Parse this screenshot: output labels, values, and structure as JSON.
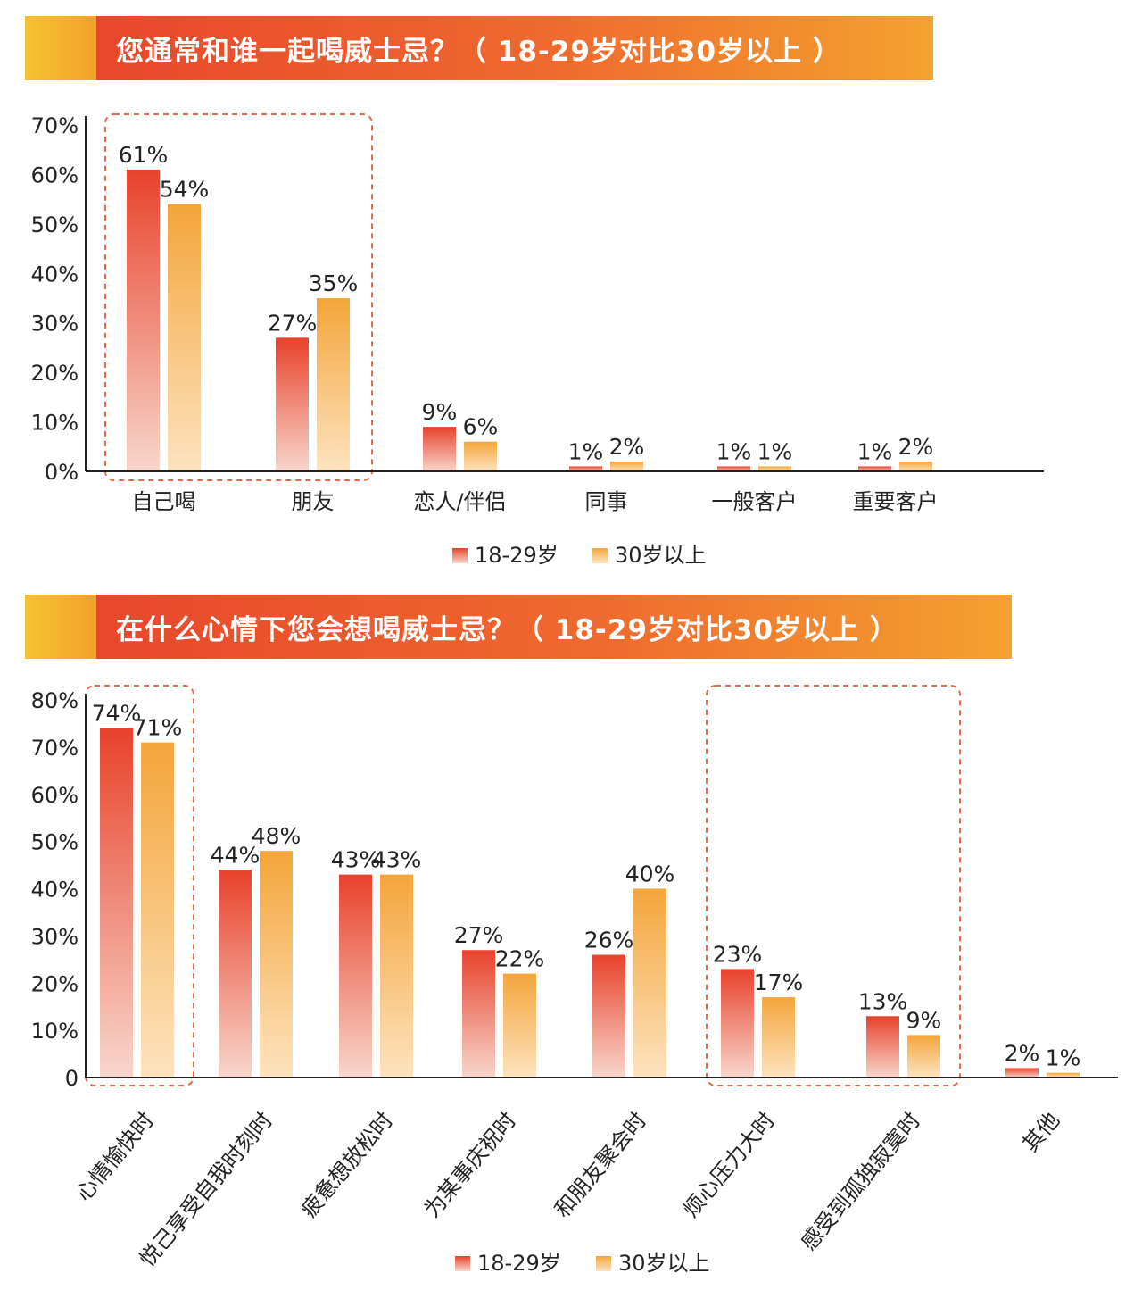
{
  "colors": {
    "series1_top": "#e8422b",
    "series1_bottom": "#f8d6cc",
    "series2_top": "#f4a53b",
    "series2_bottom": "#fde3bf",
    "highlight_box": "#e46a4e",
    "axis": "#222222"
  },
  "chart_data": [
    {
      "type": "bar",
      "title": "您通常和谁一起喝威士忌？（ 18-29岁对比30岁以上 ）",
      "categories": [
        "自己喝",
        "朋友",
        "恋人/伴侣",
        "同事",
        "一般客户",
        "重要客户"
      ],
      "series": [
        {
          "name": "18-29岁",
          "values": [
            61,
            27,
            9,
            1,
            1,
            1
          ],
          "labels": [
            "61%",
            "27%",
            "9%",
            "1%",
            "1%",
            "1%"
          ]
        },
        {
          "name": "30岁以上",
          "values": [
            54,
            35,
            6,
            2,
            1,
            2
          ],
          "labels": [
            "54%",
            "35%",
            "6%",
            "2%",
            "1%",
            "2%"
          ]
        }
      ],
      "yticks": [
        "0%",
        "10%",
        "20%",
        "30%",
        "40%",
        "50%",
        "60%",
        "70%"
      ],
      "ylim": [
        0,
        70
      ],
      "xlabel": "",
      "ylabel": "",
      "highlight_groups": [
        [
          0,
          1
        ]
      ],
      "legend": "bottom-center"
    },
    {
      "type": "bar",
      "title": "在什么心情下您会想喝威士忌？（ 18-29岁对比30岁以上 ）",
      "categories": [
        "心情愉快时",
        "悦己享受自我时刻时",
        "疲惫想放松时",
        "为某事庆祝时",
        "和朋友聚会时",
        "烦心压力大时",
        "感受到孤独寂寞时",
        "其他"
      ],
      "series": [
        {
          "name": "18-29岁",
          "values": [
            74,
            44,
            43,
            27,
            26,
            23,
            13,
            2
          ],
          "labels": [
            "74%",
            "44%",
            "43%",
            "27%",
            "26%",
            "23%",
            "13%",
            "2%"
          ]
        },
        {
          "name": "30岁以上",
          "values": [
            71,
            48,
            43,
            22,
            40,
            17,
            9,
            1
          ],
          "labels": [
            "71%",
            "48%",
            "43%",
            "22%",
            "40%",
            "17%",
            "9%",
            "1%"
          ]
        }
      ],
      "yticks": [
        "0",
        "10%",
        "20%",
        "30%",
        "40%",
        "50%",
        "60%",
        "70%",
        "80%"
      ],
      "ylim": [
        0,
        80
      ],
      "xlabel": "",
      "ylabel": "",
      "highlight_groups": [
        [
          0,
          0
        ],
        [
          5,
          6
        ]
      ],
      "legend": "bottom-center"
    }
  ]
}
